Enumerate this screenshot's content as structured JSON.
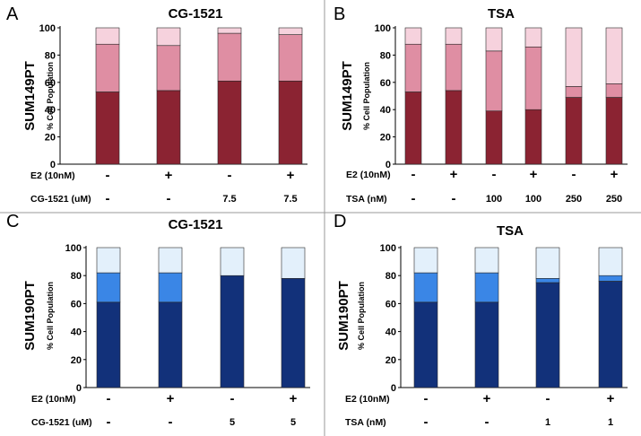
{
  "chart_data": [
    {
      "type": "bar",
      "stacked": true,
      "panel": "A",
      "title": "CG-1521",
      "ylabel": "SUM149PT",
      "ylabel_sub": "% Cell Population",
      "ylim": [
        0,
        100
      ],
      "yticks": [
        0,
        20,
        40,
        60,
        80,
        100
      ],
      "colors": [
        "#8b2332",
        "#df8ea3",
        "#f6d2dd"
      ],
      "categories": [
        "1",
        "2",
        "3",
        "4"
      ],
      "series": [
        {
          "name": "bottom",
          "values": [
            53,
            54,
            61,
            61
          ]
        },
        {
          "name": "middle",
          "values": [
            35,
            33,
            35,
            34
          ]
        },
        {
          "name": "top",
          "values": [
            12,
            13,
            4,
            5
          ]
        }
      ],
      "treatment_rows": [
        {
          "label": "E2 (10nM)",
          "values": [
            "-",
            "+",
            "-",
            "+"
          ]
        },
        {
          "label": "CG-1521 (uM)",
          "values": [
            "-",
            "-",
            "7.5",
            "7.5"
          ]
        }
      ]
    },
    {
      "type": "bar",
      "stacked": true,
      "panel": "B",
      "title": "TSA",
      "ylabel": "SUM149PT",
      "ylabel_sub": "% Cell Population",
      "ylim": [
        0,
        100
      ],
      "yticks": [
        0,
        20,
        40,
        60,
        80,
        100
      ],
      "colors": [
        "#8b2332",
        "#df8ea3",
        "#f6d2dd"
      ],
      "categories": [
        "1",
        "2",
        "3",
        "4",
        "5",
        "6"
      ],
      "series": [
        {
          "name": "bottom",
          "values": [
            53,
            54,
            39,
            40,
            49,
            49
          ]
        },
        {
          "name": "middle",
          "values": [
            35,
            34,
            44,
            46,
            8,
            10
          ]
        },
        {
          "name": "top",
          "values": [
            12,
            12,
            17,
            14,
            43,
            41
          ]
        }
      ],
      "treatment_rows": [
        {
          "label": "E2 (10nM)",
          "values": [
            "-",
            "+",
            "-",
            "+",
            "-",
            "+"
          ]
        },
        {
          "label": "TSA (nM)",
          "values": [
            "-",
            "-",
            "100",
            "100",
            "250",
            "250"
          ]
        }
      ]
    },
    {
      "type": "bar",
      "stacked": true,
      "panel": "C",
      "title": "CG-1521",
      "ylabel": "SUM190PT",
      "ylabel_sub": "% Cell Population",
      "ylim": [
        0,
        100
      ],
      "yticks": [
        0,
        20,
        40,
        60,
        80,
        100
      ],
      "colors": [
        "#12317a",
        "#3a86e6",
        "#e3f0fb"
      ],
      "categories": [
        "1",
        "2",
        "3",
        "4"
      ],
      "series": [
        {
          "name": "bottom",
          "values": [
            61,
            61,
            80,
            78
          ]
        },
        {
          "name": "middle",
          "values": [
            21,
            21,
            0,
            0
          ]
        },
        {
          "name": "top",
          "values": [
            18,
            18,
            20,
            22
          ]
        }
      ],
      "treatment_rows": [
        {
          "label": "E2 (10nM)",
          "values": [
            "-",
            "+",
            "-",
            "+"
          ]
        },
        {
          "label": "CG-1521 (uM)",
          "values": [
            "-",
            "-",
            "5",
            "5"
          ]
        }
      ]
    },
    {
      "type": "bar",
      "stacked": true,
      "panel": "D",
      "title": "TSA",
      "ylabel": "SUM190PT",
      "ylabel_sub": "% Cell Population",
      "ylim": [
        0,
        100
      ],
      "yticks": [
        0,
        20,
        40,
        60,
        80,
        100
      ],
      "colors": [
        "#12317a",
        "#3a86e6",
        "#e3f0fb"
      ],
      "categories": [
        "1",
        "2",
        "3",
        "4"
      ],
      "series": [
        {
          "name": "bottom",
          "values": [
            61,
            61,
            75,
            76
          ]
        },
        {
          "name": "middle",
          "values": [
            21,
            21,
            3,
            4
          ]
        },
        {
          "name": "top",
          "values": [
            18,
            18,
            22,
            20
          ]
        }
      ],
      "treatment_rows": [
        {
          "label": "E2 (10nM)",
          "values": [
            "-",
            "+",
            "-",
            "+"
          ]
        },
        {
          "label": "TSA (nM)",
          "values": [
            "-",
            "-",
            "1",
            "1"
          ]
        }
      ]
    }
  ]
}
